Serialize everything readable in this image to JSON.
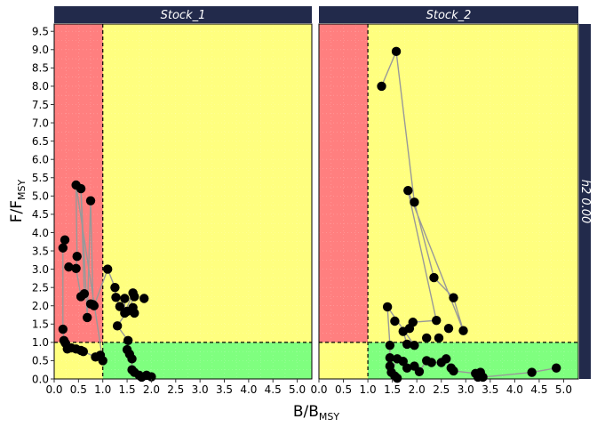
{
  "chart_data": {
    "type": "scatter",
    "facet_strip_right": "h2  0.00",
    "xlabel": {
      "main": "B/B",
      "sub": "MSY"
    },
    "ylabel": {
      "main": "F/F",
      "sub": "MSY"
    },
    "xlim": [
      0,
      5.3
    ],
    "ylim": [
      0,
      9.7
    ],
    "x_ticks": [
      "0.0",
      "0.5",
      "1.0",
      "1.5",
      "2.0",
      "2.5",
      "3.0",
      "3.5",
      "4.0",
      "4.5",
      "5.0"
    ],
    "y_ticks": [
      "0.0",
      "0.5",
      "1.0",
      "1.5",
      "2.0",
      "2.5",
      "3.0",
      "3.5",
      "4.0",
      "4.5",
      "5.0",
      "5.5",
      "6.0",
      "6.5",
      "7.0",
      "7.5",
      "8.0",
      "8.5",
      "9.0",
      "9.5"
    ],
    "reference_lines": {
      "x": 1.0,
      "y": 1.0
    },
    "zone_colors": {
      "red": "#ff7f7f",
      "yellow": "#ffff7f",
      "green": "#7fff7f"
    },
    "point_color": "#000000",
    "path_color": "#999999",
    "strip_color": "#222a4b",
    "grid": true,
    "panels": [
      {
        "title": "Stock_1",
        "points": [
          [
            0.18,
            3.58
          ],
          [
            0.22,
            3.8
          ],
          [
            0.3,
            3.06
          ],
          [
            0.45,
            3.02
          ],
          [
            0.47,
            3.35
          ],
          [
            0.45,
            5.3
          ],
          [
            0.55,
            5.2
          ],
          [
            0.55,
            2.25
          ],
          [
            0.62,
            2.33
          ],
          [
            0.68,
            1.68
          ],
          [
            0.75,
            2.05
          ],
          [
            0.75,
            4.87
          ],
          [
            0.8,
            2.03
          ],
          [
            0.82,
            2.0
          ],
          [
            0.18,
            1.36
          ],
          [
            0.2,
            1.05
          ],
          [
            0.23,
            0.98
          ],
          [
            0.27,
            0.82
          ],
          [
            0.35,
            0.85
          ],
          [
            0.45,
            0.82
          ],
          [
            0.55,
            0.78
          ],
          [
            0.6,
            0.75
          ],
          [
            0.85,
            0.6
          ],
          [
            0.95,
            0.65
          ],
          [
            1.0,
            0.5
          ],
          [
            1.1,
            3.0
          ],
          [
            1.25,
            2.5
          ],
          [
            1.27,
            2.23
          ],
          [
            1.3,
            1.45
          ],
          [
            1.35,
            1.98
          ],
          [
            1.45,
            2.2
          ],
          [
            1.45,
            1.8
          ],
          [
            1.5,
            1.85
          ],
          [
            1.5,
            0.8
          ],
          [
            1.52,
            1.05
          ],
          [
            1.55,
            0.68
          ],
          [
            1.6,
            0.55
          ],
          [
            1.62,
            2.35
          ],
          [
            1.62,
            1.95
          ],
          [
            1.65,
            2.25
          ],
          [
            1.65,
            1.8
          ],
          [
            1.6,
            0.25
          ],
          [
            1.65,
            0.18
          ],
          [
            1.75,
            0.1
          ],
          [
            1.8,
            0.05
          ],
          [
            1.85,
            2.2
          ],
          [
            1.9,
            0.1
          ],
          [
            2.0,
            0.06
          ]
        ],
        "path": [
          [
            0.22,
            3.8
          ],
          [
            0.18,
            3.58
          ],
          [
            0.18,
            1.36
          ],
          [
            0.2,
            1.05
          ],
          [
            0.23,
            0.98
          ],
          [
            0.27,
            0.82
          ],
          [
            0.35,
            0.85
          ],
          [
            0.45,
            0.82
          ],
          [
            0.55,
            0.78
          ],
          [
            0.6,
            0.75
          ],
          [
            0.85,
            0.6
          ],
          [
            0.95,
            0.65
          ],
          [
            1.0,
            0.5
          ],
          [
            0.45,
            5.3
          ],
          [
            0.47,
            3.35
          ],
          [
            0.45,
            3.02
          ],
          [
            0.55,
            2.25
          ],
          [
            0.62,
            2.33
          ],
          [
            0.55,
            5.2
          ],
          [
            0.68,
            1.68
          ],
          [
            0.75,
            4.87
          ],
          [
            0.8,
            2.03
          ],
          [
            0.82,
            2.0
          ],
          [
            1.1,
            3.0
          ],
          [
            1.25,
            2.5
          ],
          [
            1.27,
            2.23
          ],
          [
            1.35,
            1.98
          ],
          [
            1.45,
            2.2
          ],
          [
            1.45,
            1.8
          ],
          [
            1.62,
            2.35
          ],
          [
            1.65,
            2.25
          ],
          [
            1.5,
            1.85
          ],
          [
            1.3,
            1.45
          ],
          [
            1.52,
            1.05
          ],
          [
            1.5,
            0.8
          ],
          [
            1.55,
            0.68
          ],
          [
            1.6,
            0.55
          ],
          [
            1.6,
            0.25
          ],
          [
            1.65,
            0.18
          ],
          [
            1.75,
            0.1
          ],
          [
            1.8,
            0.05
          ],
          [
            1.9,
            0.1
          ],
          [
            2.0,
            0.06
          ]
        ]
      },
      {
        "title": "Stock_2",
        "points": [
          [
            1.28,
            8.0
          ],
          [
            1.58,
            8.95
          ],
          [
            1.82,
            5.15
          ],
          [
            1.95,
            4.83
          ],
          [
            2.35,
            2.77
          ],
          [
            2.75,
            2.22
          ],
          [
            1.4,
            1.97
          ],
          [
            1.55,
            1.58
          ],
          [
            1.85,
            1.38
          ],
          [
            1.72,
            1.3
          ],
          [
            1.92,
            1.55
          ],
          [
            2.4,
            1.6
          ],
          [
            2.65,
            1.38
          ],
          [
            2.95,
            1.32
          ],
          [
            2.2,
            1.12
          ],
          [
            2.45,
            1.12
          ],
          [
            1.45,
            0.92
          ],
          [
            1.8,
            0.95
          ],
          [
            1.95,
            0.92
          ],
          [
            1.45,
            0.58
          ],
          [
            1.45,
            0.35
          ],
          [
            1.48,
            0.18
          ],
          [
            1.6,
            0.55
          ],
          [
            1.72,
            0.48
          ],
          [
            1.8,
            0.3
          ],
          [
            1.95,
            0.35
          ],
          [
            2.05,
            0.2
          ],
          [
            2.2,
            0.5
          ],
          [
            2.3,
            0.45
          ],
          [
            2.5,
            0.45
          ],
          [
            2.6,
            0.55
          ],
          [
            2.7,
            0.3
          ],
          [
            2.75,
            0.22
          ],
          [
            3.2,
            0.15
          ],
          [
            3.25,
            0.05
          ],
          [
            3.3,
            0.18
          ],
          [
            3.35,
            0.05
          ],
          [
            4.35,
            0.18
          ],
          [
            4.85,
            0.3
          ],
          [
            1.55,
            0.08
          ],
          [
            1.6,
            0.02
          ]
        ],
        "path": [
          [
            1.28,
            8.0
          ],
          [
            1.58,
            8.95
          ],
          [
            1.95,
            4.83
          ],
          [
            2.35,
            2.77
          ],
          [
            2.75,
            2.22
          ],
          [
            2.95,
            1.32
          ],
          [
            1.82,
            5.15
          ],
          [
            2.4,
            1.6
          ],
          [
            1.92,
            1.55
          ],
          [
            1.85,
            1.38
          ],
          [
            1.72,
            1.3
          ],
          [
            1.8,
            0.95
          ],
          [
            1.95,
            0.92
          ],
          [
            1.4,
            1.97
          ],
          [
            1.45,
            0.92
          ],
          [
            1.45,
            0.58
          ],
          [
            1.45,
            0.35
          ],
          [
            1.48,
            0.18
          ],
          [
            1.6,
            0.55
          ],
          [
            1.72,
            0.48
          ],
          [
            1.8,
            0.3
          ],
          [
            1.95,
            0.35
          ],
          [
            2.05,
            0.2
          ],
          [
            2.2,
            0.5
          ],
          [
            2.3,
            0.45
          ],
          [
            2.5,
            0.45
          ],
          [
            2.6,
            0.55
          ],
          [
            2.7,
            0.3
          ],
          [
            2.75,
            0.22
          ],
          [
            3.2,
            0.15
          ],
          [
            3.25,
            0.05
          ],
          [
            3.3,
            0.18
          ],
          [
            3.35,
            0.05
          ],
          [
            4.35,
            0.18
          ],
          [
            4.85,
            0.3
          ]
        ]
      }
    ]
  }
}
